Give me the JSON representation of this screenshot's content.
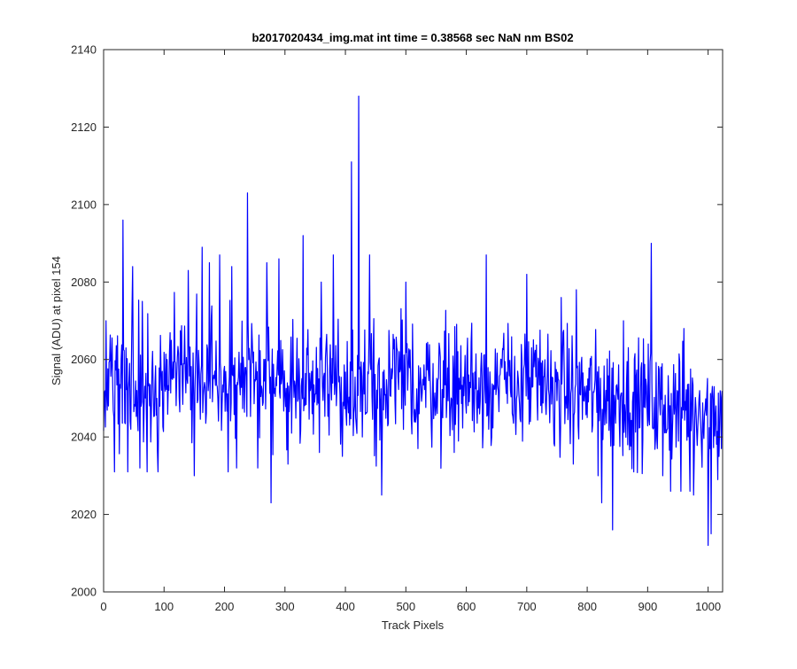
{
  "chart_data": {
    "type": "line",
    "title": "b2017020434_img.mat int time = 0.38568 sec  NaN nm BS02",
    "xlabel": "Track Pixels",
    "ylabel": "Signal (ADU) at pixel 154",
    "xlim": [
      0,
      1024
    ],
    "ylim": [
      2000,
      2140
    ],
    "xticks": [
      0,
      100,
      200,
      300,
      400,
      500,
      600,
      700,
      800,
      900,
      1000
    ],
    "yticks": [
      2000,
      2020,
      2040,
      2060,
      2080,
      2100,
      2120,
      2140
    ],
    "grid": false,
    "legend": "none",
    "series_color": "#0000ff",
    "spikes": [
      {
        "x": 1,
        "y": 2051
      },
      {
        "x": 4,
        "y": 2070
      },
      {
        "x": 8,
        "y": 2048
      },
      {
        "x": 18,
        "y": 2031
      },
      {
        "x": 32,
        "y": 2096
      },
      {
        "x": 40,
        "y": 2031
      },
      {
        "x": 48,
        "y": 2084
      },
      {
        "x": 60,
        "y": 2032
      },
      {
        "x": 64,
        "y": 2075
      },
      {
        "x": 72,
        "y": 2031
      },
      {
        "x": 90,
        "y": 2031
      },
      {
        "x": 140,
        "y": 2083
      },
      {
        "x": 150,
        "y": 2030
      },
      {
        "x": 163,
        "y": 2089
      },
      {
        "x": 175,
        "y": 2085
      },
      {
        "x": 192,
        "y": 2087
      },
      {
        "x": 206,
        "y": 2031
      },
      {
        "x": 212,
        "y": 2084
      },
      {
        "x": 220,
        "y": 2032
      },
      {
        "x": 238,
        "y": 2103
      },
      {
        "x": 255,
        "y": 2032
      },
      {
        "x": 270,
        "y": 2085
      },
      {
        "x": 277,
        "y": 2023
      },
      {
        "x": 290,
        "y": 2086
      },
      {
        "x": 305,
        "y": 2033
      },
      {
        "x": 330,
        "y": 2092
      },
      {
        "x": 345,
        "y": 2046
      },
      {
        "x": 360,
        "y": 2080
      },
      {
        "x": 380,
        "y": 2087
      },
      {
        "x": 395,
        "y": 2035
      },
      {
        "x": 402,
        "y": 2043
      },
      {
        "x": 410,
        "y": 2111
      },
      {
        "x": 415,
        "y": 2048
      },
      {
        "x": 422,
        "y": 2128
      },
      {
        "x": 428,
        "y": 2040
      },
      {
        "x": 440,
        "y": 2087
      },
      {
        "x": 460,
        "y": 2025
      },
      {
        "x": 500,
        "y": 2080
      },
      {
        "x": 520,
        "y": 2037
      },
      {
        "x": 580,
        "y": 2036
      },
      {
        "x": 633,
        "y": 2087
      },
      {
        "x": 700,
        "y": 2082
      },
      {
        "x": 757,
        "y": 2076
      },
      {
        "x": 777,
        "y": 2033
      },
      {
        "x": 782,
        "y": 2078
      },
      {
        "x": 800,
        "y": 2045
      },
      {
        "x": 818,
        "y": 2030
      },
      {
        "x": 824,
        "y": 2023
      },
      {
        "x": 842,
        "y": 2016
      },
      {
        "x": 860,
        "y": 2070
      },
      {
        "x": 877,
        "y": 2031
      },
      {
        "x": 906,
        "y": 2090
      },
      {
        "x": 916,
        "y": 2037
      },
      {
        "x": 925,
        "y": 2030
      },
      {
        "x": 938,
        "y": 2026
      },
      {
        "x": 955,
        "y": 2026
      },
      {
        "x": 960,
        "y": 2068
      },
      {
        "x": 970,
        "y": 2026
      },
      {
        "x": 976,
        "y": 2025
      },
      {
        "x": 985,
        "y": 2050
      },
      {
        "x": 1000,
        "y": 2012
      },
      {
        "x": 1003,
        "y": 2037
      },
      {
        "x": 1005,
        "y": 2015
      },
      {
        "x": 1010,
        "y": 2053
      },
      {
        "x": 1016,
        "y": 2029
      }
    ]
  }
}
